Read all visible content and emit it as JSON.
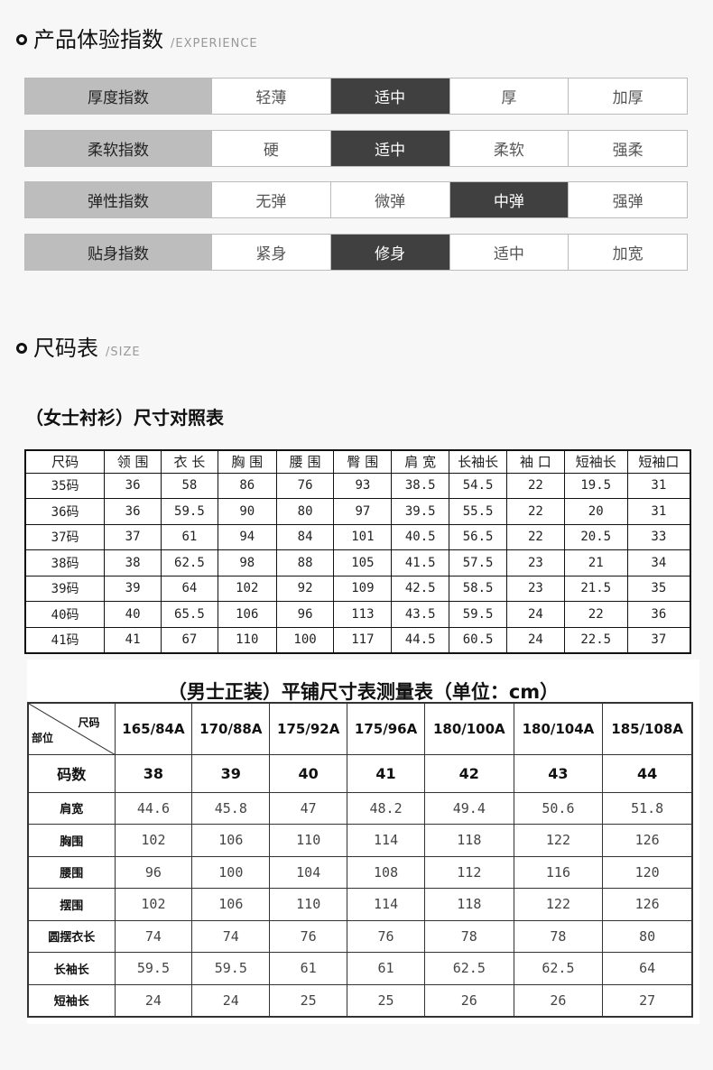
{
  "experience": {
    "title": "产品体验指数",
    "subtitle": "/EXPERIENCE",
    "rows": [
      {
        "label": "厚度指数",
        "options": [
          "轻薄",
          "适中",
          "厚",
          "加厚"
        ],
        "selected": 1
      },
      {
        "label": "柔软指数",
        "options": [
          "硬",
          "适中",
          "柔软",
          "强柔"
        ],
        "selected": 1
      },
      {
        "label": "弹性指数",
        "options": [
          "无弹",
          "微弹",
          "中弹",
          "强弹"
        ],
        "selected": 2
      },
      {
        "label": "贴身指数",
        "options": [
          "紧身",
          "修身",
          "适中",
          "加宽"
        ],
        "selected": 1
      }
    ]
  },
  "size": {
    "title": "尺码表",
    "subtitle": "/SIZE"
  },
  "women": {
    "title": "（女士衬衫）尺寸对照表",
    "headers": [
      "尺码",
      "领 围",
      "衣 长",
      "胸 围",
      "腰 围",
      "臀 围",
      "肩 宽",
      "长袖长",
      "袖 口",
      "短袖长",
      "短袖口"
    ],
    "rows": [
      [
        "35码",
        "36",
        "58",
        "86",
        "76",
        "93",
        "38.5",
        "54.5",
        "22",
        "19.5",
        "31"
      ],
      [
        "36码",
        "36",
        "59.5",
        "90",
        "80",
        "97",
        "39.5",
        "55.5",
        "22",
        "20",
        "31"
      ],
      [
        "37码",
        "37",
        "61",
        "94",
        "84",
        "101",
        "40.5",
        "56.5",
        "22",
        "20.5",
        "33"
      ],
      [
        "38码",
        "38",
        "62.5",
        "98",
        "88",
        "105",
        "41.5",
        "57.5",
        "23",
        "21",
        "34"
      ],
      [
        "39码",
        "39",
        "64",
        "102",
        "92",
        "109",
        "42.5",
        "58.5",
        "23",
        "21.5",
        "35"
      ],
      [
        "40码",
        "40",
        "65.5",
        "106",
        "96",
        "113",
        "43.5",
        "59.5",
        "24",
        "22",
        "36"
      ],
      [
        "41码",
        "41",
        "67",
        "110",
        "100",
        "117",
        "44.5",
        "60.5",
        "24",
        "22.5",
        "37"
      ]
    ]
  },
  "men": {
    "title": "（男士正装）平铺尺寸表测量表（单位：cm）",
    "corner_top": "尺码",
    "corner_bottom": "部位",
    "headers": [
      "165/84A",
      "170/88A",
      "175/92A",
      "175/96A",
      "180/100A",
      "180/104A",
      "185/108A"
    ],
    "rows": [
      {
        "label": "码数",
        "values": [
          "38",
          "39",
          "40",
          "41",
          "42",
          "43",
          "44"
        ]
      },
      {
        "label": "肩宽",
        "values": [
          "44.6",
          "45.8",
          "47",
          "48.2",
          "49.4",
          "50.6",
          "51.8"
        ]
      },
      {
        "label": "胸围",
        "values": [
          "102",
          "106",
          "110",
          "114",
          "118",
          "122",
          "126"
        ]
      },
      {
        "label": "腰围",
        "values": [
          "96",
          "100",
          "104",
          "108",
          "112",
          "116",
          "120"
        ]
      },
      {
        "label": "摆围",
        "values": [
          "102",
          "106",
          "110",
          "114",
          "118",
          "122",
          "126"
        ]
      },
      {
        "label": "圆摆衣长",
        "values": [
          "74",
          "74",
          "76",
          "76",
          "78",
          "78",
          "80"
        ]
      },
      {
        "label": "长袖长",
        "values": [
          "59.5",
          "59.5",
          "61",
          "61",
          "62.5",
          "62.5",
          "64"
        ]
      },
      {
        "label": "短袖长",
        "values": [
          "24",
          "24",
          "25",
          "25",
          "26",
          "26",
          "27"
        ]
      }
    ]
  }
}
